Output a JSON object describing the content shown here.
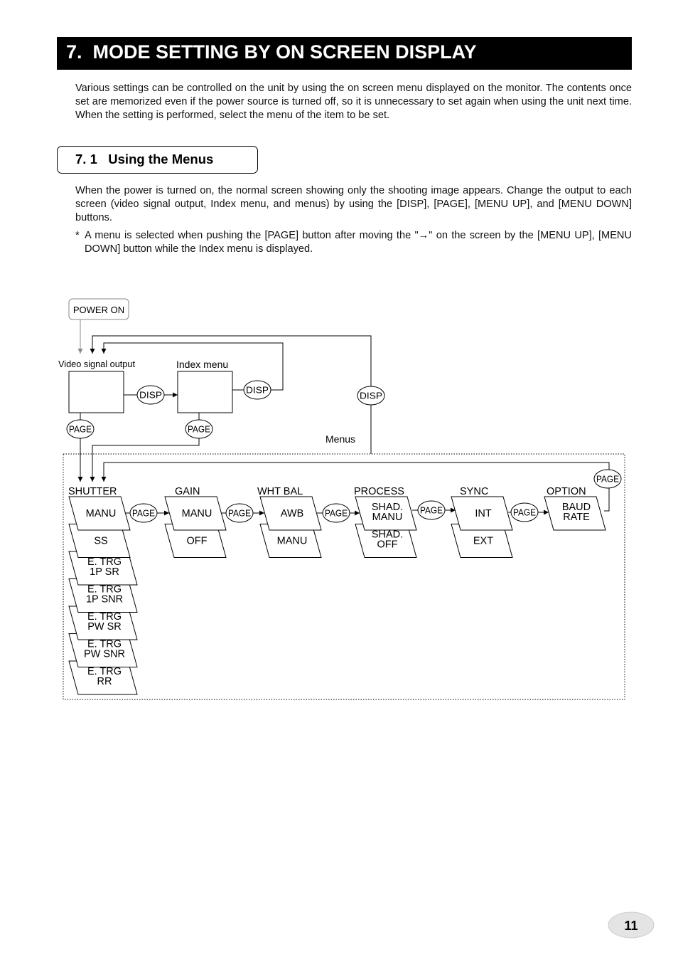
{
  "header": {
    "title": "7.  MODE SETTING BY ON SCREEN DISPLAY"
  },
  "intro": "Various settings can be controlled on the unit by using the on screen menu displayed on the monitor. The contents once set are memorized even if the power source is turned off, so it is unnecessary to set again when using the unit next time. When the setting is performed, select the menu of the item to be set.",
  "section": {
    "title": "7. 1   Using the Menus",
    "paragraph": "When the power is turned on, the normal screen showing only the shooting image appears. Change the output to each screen (video signal output, Index menu, and menus) by using the [DISP], [PAGE], [MENU UP], and [MENU DOWN] buttons.",
    "note_marker": "*",
    "note": "A menu is selected when pushing the [PAGE] button after moving the \"→\" on the screen by the [MENU UP], [MENU DOWN] button while the Index menu is displayed."
  },
  "diagram": {
    "power_on": "POWER ON",
    "video_label": "Video signal output",
    "index_label": "Index menu",
    "menus_label": "Menus",
    "buttons": [
      "DISP",
      "DISP",
      "DISP",
      "PAGE",
      "PAGE",
      "PAGE",
      "PAGE",
      "PAGE",
      "PAGE",
      "PAGE",
      "PAGE"
    ],
    "menus": [
      {
        "name": "SHUTTER",
        "items": [
          [
            "MANU"
          ],
          [
            "SS"
          ],
          [
            "E. TRG",
            "1P SR"
          ],
          [
            "E. TRG",
            "1P SNR"
          ],
          [
            "E. TRG",
            "PW SR"
          ],
          [
            "E. TRG",
            "PW SNR"
          ],
          [
            "E. TRG",
            "RR"
          ]
        ]
      },
      {
        "name": "GAIN",
        "items": [
          [
            "MANU"
          ],
          [
            "OFF"
          ]
        ]
      },
      {
        "name": "WHT BAL",
        "items": [
          [
            "AWB"
          ],
          [
            "MANU"
          ]
        ]
      },
      {
        "name": "PROCESS",
        "items": [
          [
            "SHAD.",
            "MANU"
          ],
          [
            "SHAD.",
            "OFF"
          ]
        ]
      },
      {
        "name": "SYNC",
        "items": [
          [
            "INT"
          ],
          [
            "EXT"
          ]
        ]
      },
      {
        "name": "OPTION",
        "items": [
          [
            "BAUD",
            "RATE"
          ]
        ]
      }
    ]
  },
  "page_number": "11"
}
